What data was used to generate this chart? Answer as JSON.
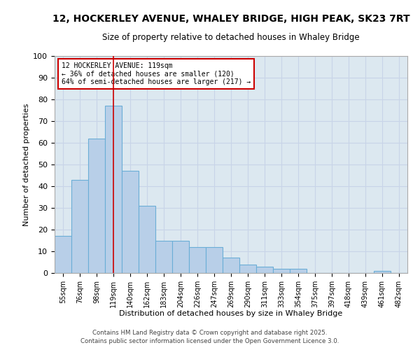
{
  "title_line1": "12, HOCKERLEY AVENUE, WHALEY BRIDGE, HIGH PEAK, SK23 7RT",
  "title_line2": "Size of property relative to detached houses in Whaley Bridge",
  "xlabel": "Distribution of detached houses by size in Whaley Bridge",
  "ylabel": "Number of detached properties",
  "categories": [
    "55sqm",
    "76sqm",
    "98sqm",
    "119sqm",
    "140sqm",
    "162sqm",
    "183sqm",
    "204sqm",
    "226sqm",
    "247sqm",
    "269sqm",
    "290sqm",
    "311sqm",
    "333sqm",
    "354sqm",
    "375sqm",
    "397sqm",
    "418sqm",
    "439sqm",
    "461sqm",
    "482sqm"
  ],
  "values": [
    17,
    43,
    62,
    77,
    47,
    31,
    15,
    15,
    12,
    12,
    7,
    4,
    3,
    2,
    2,
    0,
    0,
    0,
    0,
    1,
    0
  ],
  "bar_color": "#b8cfe8",
  "bar_edge_color": "#6baed6",
  "vline_index": 3,
  "vline_color": "#cc0000",
  "annotation_text": "12 HOCKERLEY AVENUE: 119sqm\n← 36% of detached houses are smaller (120)\n64% of semi-detached houses are larger (217) →",
  "annotation_box_color": "#ffffff",
  "annotation_box_edge_color": "#cc0000",
  "annotation_fontsize": 7,
  "ylim": [
    0,
    100
  ],
  "yticks": [
    0,
    10,
    20,
    30,
    40,
    50,
    60,
    70,
    80,
    90,
    100
  ],
  "grid_color": "#c8d4e8",
  "bg_color": "#dce8f0",
  "footer_line1": "Contains HM Land Registry data © Crown copyright and database right 2025.",
  "footer_line2": "Contains public sector information licensed under the Open Government Licence 3.0.",
  "title_fontsize": 10,
  "subtitle_fontsize": 8.5
}
